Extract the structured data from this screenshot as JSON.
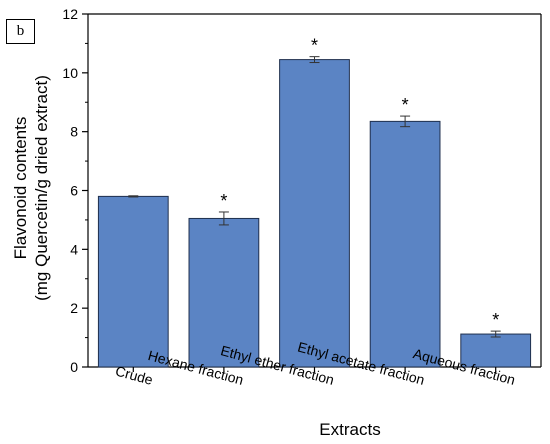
{
  "panel_label": "b",
  "chart_data": {
    "type": "bar",
    "categories": [
      "Crude",
      "Hexane fraction",
      "Ethyl ether fraction",
      "Ethyl acetate fraction",
      "Aqueous fraction"
    ],
    "values": [
      5.8,
      5.05,
      10.45,
      8.35,
      1.12
    ],
    "errors": [
      0.02,
      0.22,
      0.1,
      0.18,
      0.1
    ],
    "significance": [
      "",
      "*",
      "*",
      "*",
      "*"
    ],
    "xlabel": "Extracts",
    "ylabel_line1": "Flavonoid contents",
    "ylabel_line2": "(mg Quercetin/g dried extract)",
    "ylim": [
      0,
      12
    ],
    "yticks": [
      0,
      2,
      4,
      6,
      8,
      10,
      12
    ],
    "bar_color": "#5b84c4",
    "bar_edge_color": "#1f2f4d",
    "grid": false,
    "legend": "none"
  }
}
